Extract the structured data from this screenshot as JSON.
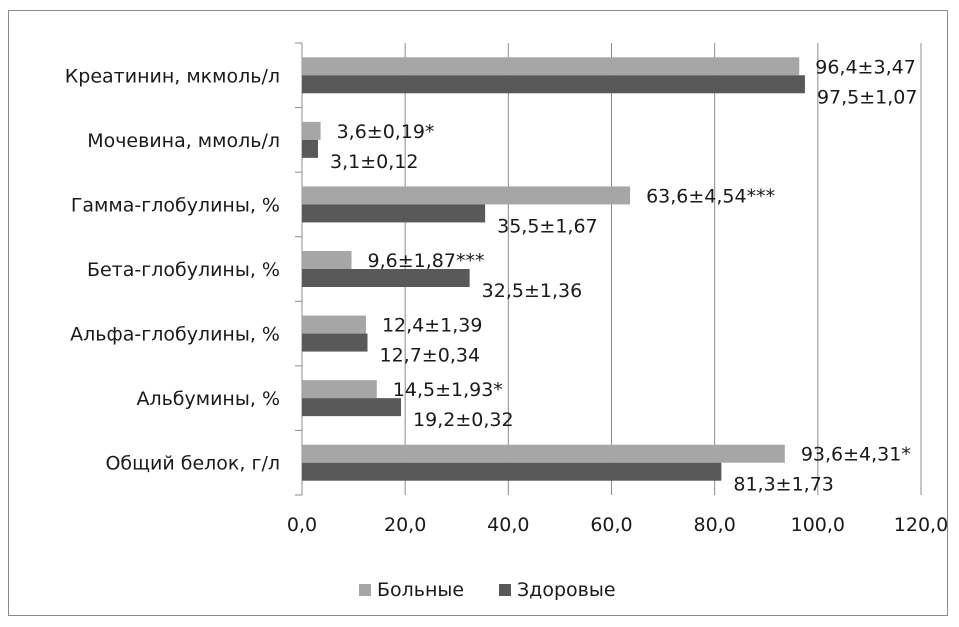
{
  "chart_data": {
    "type": "bar",
    "orientation": "horizontal",
    "categories": [
      "Креатинин, мкмоль/л",
      "Мочевина, ммоль/л",
      "Гамма-глобулины, %",
      "Бета-глобулины, %",
      "Альфа-глобулины, %",
      "Альбумины, %",
      "Общий белок, г/л"
    ],
    "series": [
      {
        "name": "Больные",
        "color": "#a6a6a6",
        "values": [
          96.4,
          3.6,
          63.6,
          9.6,
          12.4,
          14.5,
          93.6
        ],
        "labels": [
          "96,4±3,47",
          "3,6±0,19*",
          "63,6±4,54***",
          "9,6±1,87***",
          "12,4±1,39",
          "14,5±1,93*",
          "93,6±4,31*"
        ]
      },
      {
        "name": "Здоровые",
        "color": "#595959",
        "values": [
          97.5,
          3.1,
          35.5,
          32.5,
          12.7,
          19.2,
          81.3
        ],
        "labels": [
          "97,5±1,07",
          "3,1±0,12",
          "35,5±1,67",
          "32,5±1,36",
          "12,7±0,34",
          "19,2±0,32",
          "81,3±1,73"
        ]
      }
    ],
    "xlim": [
      0,
      120
    ],
    "xticks": [
      "0,0",
      "20,0",
      "40,0",
      "60,0",
      "80,0",
      "100,0",
      "120,0"
    ],
    "grid": "vertical",
    "legend_position": "bottom"
  }
}
